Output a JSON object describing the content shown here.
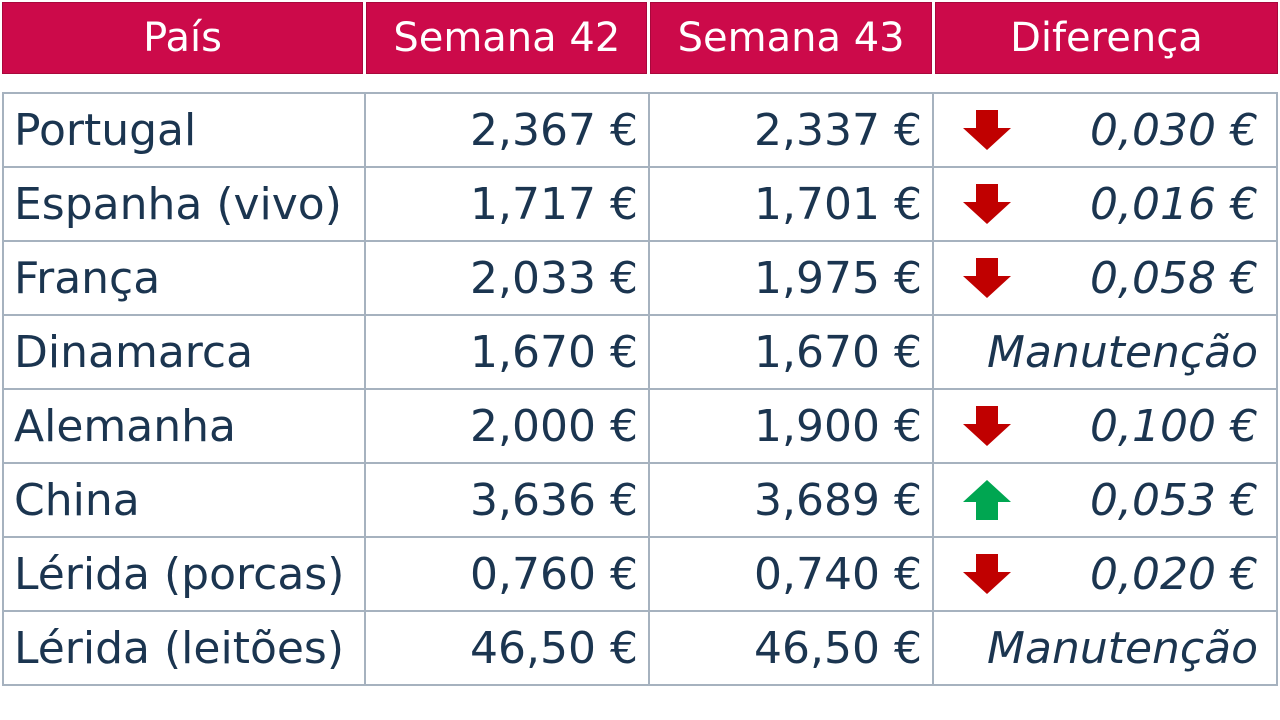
{
  "header": {
    "country": "País",
    "week42": "Semana 42",
    "week43": "Semana 43",
    "difference": "Diferença"
  },
  "colors": {
    "header_bg": "#cc0a4a",
    "text": "#1b3550",
    "down_arrow": "#c00000",
    "up_arrow": "#00a651"
  },
  "rows": [
    {
      "country": "Portugal",
      "week42": "2,367 €",
      "week43": "2,337 €",
      "trend": "down",
      "diff": "0,030 €"
    },
    {
      "country": "Espanha (vivo)",
      "week42": "1,717 €",
      "week43": "1,701 €",
      "trend": "down",
      "diff": "0,016 €"
    },
    {
      "country": "França",
      "week42": "2,033 €",
      "week43": "1,975 €",
      "trend": "down",
      "diff": "0,058 €"
    },
    {
      "country": "Dinamarca",
      "week42": "1,670 €",
      "week43": "1,670 €",
      "trend": "none",
      "diff": "Manutenção"
    },
    {
      "country": "Alemanha",
      "week42": "2,000 €",
      "week43": "1,900 €",
      "trend": "down",
      "diff": "0,100 €"
    },
    {
      "country": "China",
      "week42": "3,636 €",
      "week43": "3,689 €",
      "trend": "up",
      "diff": "0,053 €"
    },
    {
      "country": "Lérida (porcas)",
      "week42": "0,760 €",
      "week43": "0,740 €",
      "trend": "down",
      "diff": "0,020 €"
    },
    {
      "country": "Lérida (leitões)",
      "week42": "46,50 €",
      "week43": "46,50 €",
      "trend": "none",
      "diff": "Manutenção"
    }
  ]
}
